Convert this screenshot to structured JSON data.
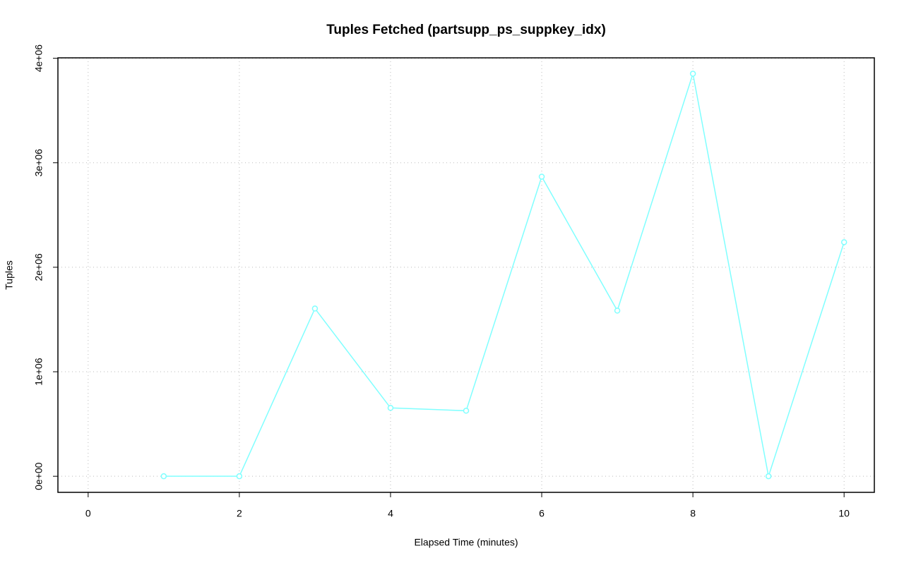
{
  "chart_data": {
    "type": "line",
    "title": "Tuples Fetched (partsupp_ps_suppkey_idx)",
    "x_label": "Elapsed Time (minutes)",
    "y_label": "Tuples",
    "x": [
      1,
      2,
      3,
      4,
      5,
      6,
      7,
      8,
      9,
      10
    ],
    "series": [
      {
        "name": "Tuples",
        "color": "#80ffff",
        "values": [
          0,
          0,
          1605000,
          654000,
          627000,
          2867000,
          1585000,
          3852000,
          0,
          2240000
        ]
      }
    ],
    "xlim": [
      -0.4,
      10.4
    ],
    "xticks": [
      0,
      2,
      4,
      6,
      8,
      10
    ],
    "ylim": [
      -154000,
      4004000
    ],
    "yticks": [
      {
        "value": 0,
        "label": "0e+00"
      },
      {
        "value": 1000000,
        "label": "1e+06"
      },
      {
        "value": 2000000,
        "label": "2e+06"
      },
      {
        "value": 3000000,
        "label": "3e+06"
      },
      {
        "value": 4000000,
        "label": "4e+06"
      }
    ],
    "grid": true
  }
}
